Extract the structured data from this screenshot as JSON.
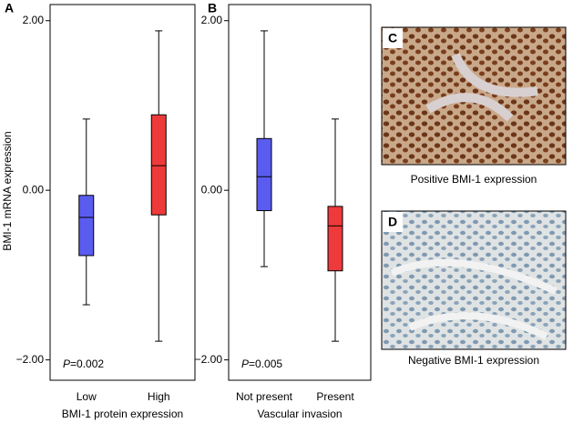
{
  "chart_data": [
    {
      "type": "box",
      "panel": "A",
      "ylabel": "BMI-1 mRNA expression",
      "xlabel": "BMI-1 protein expression",
      "categories": [
        "Low",
        "High"
      ],
      "boxes": [
        {
          "color": "#5a5cf0",
          "min": -1.35,
          "q1": -0.77,
          "median": -0.32,
          "q3": -0.06,
          "max": 0.84
        },
        {
          "color": "#ee3a3a",
          "min": -1.78,
          "q1": -0.29,
          "median": 0.29,
          "q3": 0.89,
          "max": 1.88
        }
      ],
      "annotation": [
        "P",
        "=0.002"
      ],
      "ylim": [
        -2.24,
        2.19
      ],
      "yticks": [
        {
          "value": -2,
          "label": "−2.00"
        },
        {
          "value": 0,
          "label": "0.00"
        },
        {
          "value": 2,
          "label": "2.00"
        }
      ]
    },
    {
      "type": "box",
      "panel": "B",
      "xlabel": "Vascular invasion",
      "categories": [
        "Not present",
        "Present"
      ],
      "boxes": [
        {
          "color": "#5a5cf0",
          "min": -0.9,
          "q1": -0.24,
          "median": 0.16,
          "q3": 0.61,
          "max": 1.88
        },
        {
          "color": "#ee3a3a",
          "min": -1.78,
          "q1": -0.95,
          "median": -0.42,
          "q3": -0.19,
          "max": 0.84
        }
      ],
      "annotation": [
        "P",
        "=0.005"
      ],
      "ylim": [
        -2.24,
        2.19
      ],
      "yticks": [
        {
          "value": -2,
          "label": "−2.00"
        },
        {
          "value": 0,
          "label": "0.00"
        },
        {
          "value": 2,
          "label": "2.00"
        }
      ]
    }
  ],
  "images": [
    {
      "panel": "C",
      "caption": "Positive BMI-1 expression"
    },
    {
      "panel": "D",
      "caption": "Negative BMI-1 expression"
    }
  ]
}
